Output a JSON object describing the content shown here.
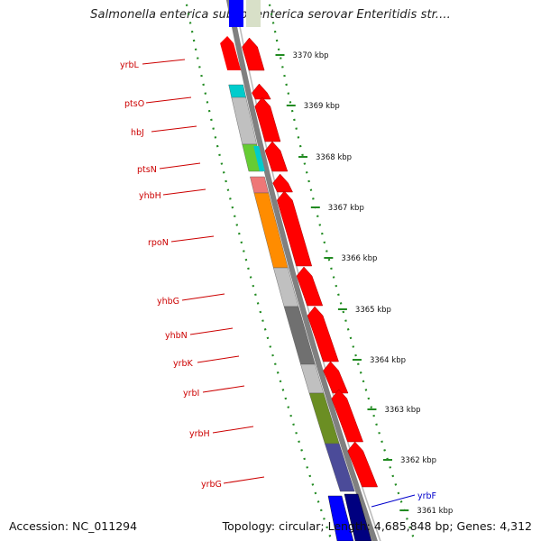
{
  "title": "Salmonella enterica subsp. enterica serovar Enteritidis str....",
  "footer": {
    "accession": "Accession: NC_011294",
    "info": "Topology: circular; Length: 4,685,848 bp; Genes: 4,312"
  },
  "ticks": [
    "3370 kbp",
    "3369 kbp",
    "3368 kbp",
    "3367 kbp",
    "3366 kbp",
    "3365 kbp",
    "3364 kbp",
    "3363 kbp",
    "3362 kbp",
    "3361 kbp"
  ],
  "genes": [
    {
      "label": "yrbL",
      "color": "#ff0000"
    },
    {
      "label": "ptsO",
      "color": "#00cccc"
    },
    {
      "label": "hbJ",
      "color": "#c0c0c0"
    },
    {
      "label": "ptsN",
      "color": "#66cc33"
    },
    {
      "label": "yhbH",
      "color": "#ee7777"
    },
    {
      "label": "rpoN",
      "color": "#ff8c00"
    },
    {
      "label": "yhbG",
      "color": "#c0c0c0"
    },
    {
      "label": "yhbN",
      "color": "#707070"
    },
    {
      "label": "yrbK",
      "color": "#c0c0c0"
    },
    {
      "label": "yrbI",
      "color": "#6b8e23"
    },
    {
      "label": "yrbH",
      "color": "#6b8e23"
    },
    {
      "label": "yrbG",
      "color": "#4b4b99"
    },
    {
      "label": "yrbF",
      "color": "#0000ff"
    }
  ],
  "colors": {
    "forward_strand": "#ff0000",
    "cds_frame": "#000080",
    "backbone": "#808080",
    "tick_mark": "#228b22"
  }
}
